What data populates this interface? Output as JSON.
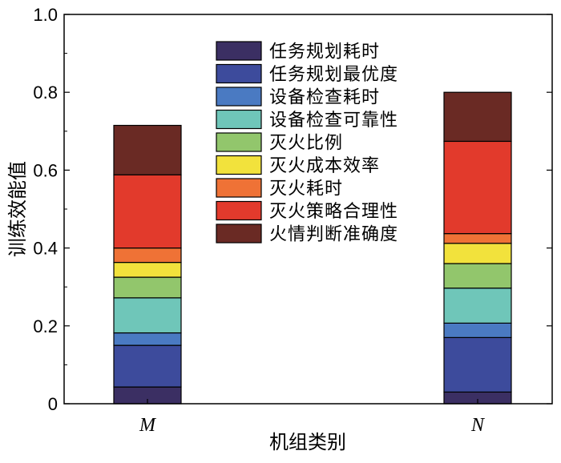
{
  "chart_data": {
    "type": "bar",
    "stacked": true,
    "xlabel": "机组类别",
    "ylabel": "训练效能值",
    "ylim": [
      0,
      1.0
    ],
    "yticks": [
      "0",
      "0.2",
      "0.4",
      "0.6",
      "0.8",
      "1.0"
    ],
    "categories": [
      "M",
      "N"
    ],
    "legend_position": "top-center",
    "grid": false,
    "series": [
      {
        "name": "任务规划耗时",
        "color": "#3b2f63",
        "values": [
          0.043,
          0.03
        ]
      },
      {
        "name": "任务规划最优度",
        "color": "#3d4b9c",
        "values": [
          0.107,
          0.14
        ]
      },
      {
        "name": "设备检查耗时",
        "color": "#4a7ac2",
        "values": [
          0.032,
          0.037
        ]
      },
      {
        "name": "设备检查可靠性",
        "color": "#6fc6b9",
        "values": [
          0.09,
          0.09
        ]
      },
      {
        "name": "灭火比例",
        "color": "#92c66c",
        "values": [
          0.053,
          0.063
        ]
      },
      {
        "name": "灭火成本效率",
        "color": "#f2e23c",
        "values": [
          0.038,
          0.052
        ]
      },
      {
        "name": "灭火耗时",
        "color": "#ef7236",
        "values": [
          0.037,
          0.025
        ]
      },
      {
        "name": "灭火策略合理性",
        "color": "#e23a2c",
        "values": [
          0.188,
          0.237
        ]
      },
      {
        "name": "火情判断准确度",
        "color": "#6a2a24",
        "values": [
          0.127,
          0.126
        ]
      }
    ]
  }
}
